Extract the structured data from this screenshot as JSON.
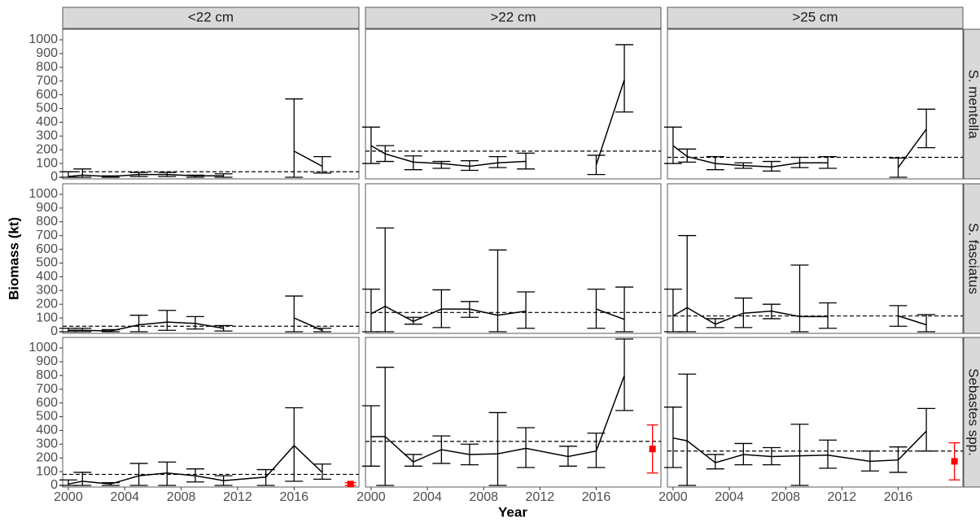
{
  "y_label": "Biomass (kt)",
  "x_label": "Year",
  "strips": {
    "columns": [
      "<22 cm",
      ">22 cm",
      ">25 cm"
    ],
    "rows": [
      "S. mentella",
      "S. fasciatus",
      "Sebastes spp."
    ]
  },
  "axes": {
    "xlim": [
      1999.6,
      2020.6
    ],
    "xticks": [
      2000,
      2004,
      2008,
      2012,
      2016
    ],
    "ylim": [
      -12,
      1077
    ],
    "yticks": [
      0,
      100,
      200,
      300,
      400,
      500,
      600,
      700,
      800,
      900,
      1000
    ]
  },
  "chart_data": [
    {
      "type": "line",
      "color": "#000000",
      "x": [
        2000,
        2001,
        2003,
        2005,
        2007,
        2009,
        2011,
        2014,
        2016,
        2018
      ],
      "values": [
        5,
        15,
        5,
        20,
        20,
        10,
        10,
        null,
        190,
        80
      ],
      "lower": [
        0,
        0,
        0,
        5,
        5,
        0,
        0,
        null,
        0,
        30
      ],
      "upper": [
        40,
        60,
        10,
        35,
        35,
        15,
        25,
        null,
        570,
        150
      ],
      "mean": 40
    },
    {
      "type": "line",
      "color": "#000000",
      "x": [
        2000,
        2001,
        2003,
        2005,
        2007,
        2009,
        2011,
        2014,
        2016,
        2018
      ],
      "values": [
        230,
        170,
        110,
        100,
        80,
        105,
        115,
        null,
        90,
        710
      ],
      "lower": [
        100,
        115,
        55,
        65,
        50,
        70,
        60,
        null,
        20,
        475
      ],
      "upper": [
        365,
        230,
        155,
        115,
        120,
        150,
        175,
        null,
        160,
        965
      ],
      "mean": 190
    },
    {
      "type": "line",
      "color": "#000000",
      "x": [
        2000,
        2001,
        2003,
        2005,
        2007,
        2009,
        2011,
        2014,
        2016,
        2018
      ],
      "values": [
        230,
        150,
        100,
        85,
        75,
        105,
        105,
        null,
        70,
        350
      ],
      "lower": [
        100,
        110,
        55,
        65,
        45,
        70,
        65,
        null,
        0,
        215
      ],
      "upper": [
        365,
        205,
        150,
        105,
        115,
        145,
        150,
        null,
        140,
        495
      ],
      "mean": 145
    },
    {
      "type": "line",
      "color": "#000000",
      "x": [
        2000,
        2001,
        2003,
        2005,
        2007,
        2009,
        2011,
        2014,
        2016,
        2018
      ],
      "values": [
        10,
        10,
        5,
        50,
        70,
        60,
        25,
        null,
        100,
        10
      ],
      "lower": [
        0,
        0,
        0,
        0,
        10,
        20,
        5,
        null,
        0,
        0
      ],
      "upper": [
        25,
        25,
        15,
        120,
        155,
        110,
        45,
        null,
        260,
        25
      ],
      "mean": 40
    },
    {
      "type": "line",
      "color": "#000000",
      "x": [
        2000,
        2001,
        2003,
        2005,
        2007,
        2009,
        2011,
        2014,
        2016,
        2018
      ],
      "values": [
        130,
        185,
        75,
        165,
        165,
        120,
        150,
        null,
        165,
        90
      ],
      "lower": [
        0,
        0,
        55,
        30,
        105,
        0,
        25,
        null,
        25,
        0
      ],
      "upper": [
        310,
        755,
        105,
        305,
        220,
        595,
        290,
        null,
        310,
        325
      ],
      "mean": 140
    },
    {
      "type": "line",
      "color": "#000000",
      "x": [
        2000,
        2001,
        2003,
        2005,
        2007,
        2009,
        2011,
        2014,
        2016,
        2018
      ],
      "values": [
        115,
        175,
        55,
        135,
        150,
        110,
        110,
        null,
        115,
        50
      ],
      "lower": [
        0,
        0,
        30,
        30,
        95,
        0,
        25,
        null,
        40,
        0
      ],
      "upper": [
        310,
        700,
        95,
        245,
        200,
        485,
        210,
        null,
        190,
        125
      ],
      "mean": 115
    },
    {
      "type": "line",
      "color": "#000000",
      "x": [
        2000,
        2001,
        2003,
        2005,
        2007,
        2009,
        2011,
        2014,
        2016,
        2018
      ],
      "values": [
        10,
        30,
        10,
        70,
        90,
        70,
        35,
        60,
        290,
        95
      ],
      "lower": [
        0,
        0,
        0,
        0,
        0,
        25,
        0,
        0,
        30,
        45
      ],
      "upper": [
        40,
        95,
        20,
        160,
        170,
        120,
        70,
        115,
        565,
        155
      ],
      "mean": 80,
      "point": {
        "x": 2020,
        "value": 10,
        "lower": 0,
        "upper": 20,
        "color": "#ff0000"
      }
    },
    {
      "type": "line",
      "color": "#000000",
      "x": [
        2000,
        2001,
        2003,
        2005,
        2007,
        2009,
        2011,
        2014,
        2016,
        2018
      ],
      "values": [
        355,
        355,
        170,
        260,
        225,
        230,
        270,
        210,
        250,
        800
      ],
      "lower": [
        140,
        0,
        140,
        160,
        150,
        0,
        130,
        140,
        130,
        545
      ],
      "upper": [
        580,
        860,
        225,
        360,
        300,
        530,
        420,
        285,
        380,
        1065
      ],
      "mean": 320,
      "point": {
        "x": 2020,
        "value": 265,
        "lower": 90,
        "upper": 440,
        "color": "#ff0000"
      }
    },
    {
      "type": "line",
      "color": "#000000",
      "x": [
        2000,
        2001,
        2003,
        2005,
        2007,
        2009,
        2011,
        2014,
        2016,
        2018
      ],
      "values": [
        345,
        325,
        165,
        225,
        210,
        215,
        220,
        175,
        185,
        395
      ],
      "lower": [
        130,
        0,
        120,
        150,
        150,
        0,
        125,
        105,
        95,
        250
      ],
      "upper": [
        570,
        810,
        225,
        305,
        275,
        445,
        330,
        250,
        280,
        560
      ],
      "mean": 250,
      "point": {
        "x": 2020,
        "value": 175,
        "lower": 40,
        "upper": 310,
        "color": "#ff0000"
      }
    }
  ]
}
